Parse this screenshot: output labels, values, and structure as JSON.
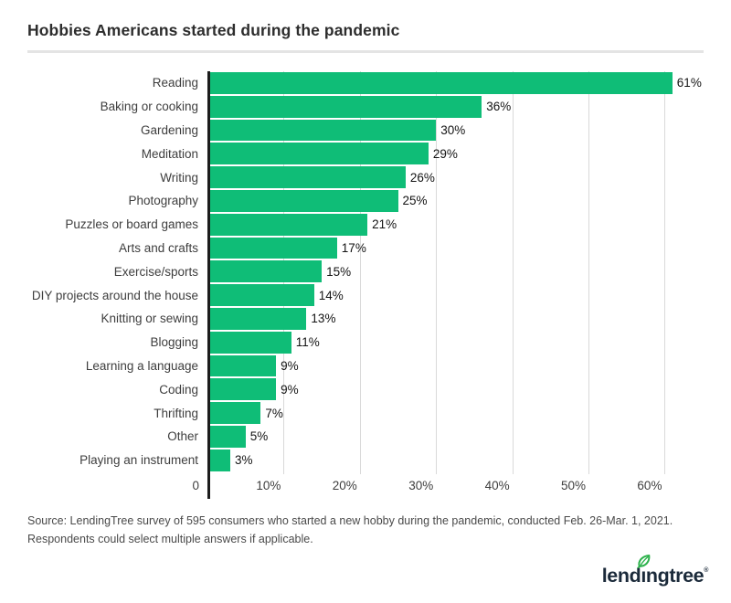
{
  "title": "Hobbies Americans started during the pandemic",
  "chart_data": {
    "type": "bar",
    "orientation": "horizontal",
    "title": "Hobbies Americans started during the pandemic",
    "xlabel": "",
    "ylabel": "",
    "grid": true,
    "xlim": [
      0,
      64.5
    ],
    "bar_color": "#0fbd77",
    "axis_color": "#1c1c1c",
    "gridline_color": "#d9d9d9",
    "categories": [
      "Reading",
      "Baking or cooking",
      "Gardening",
      "Meditation",
      "Writing",
      "Photography",
      "Puzzles or board games",
      "Arts and crafts",
      "Exercise/sports",
      "DIY projects around the house",
      "Knitting or sewing",
      "Blogging",
      "Learning a language",
      "Coding",
      "Thrifting",
      "Other",
      "Playing an instrument"
    ],
    "values": [
      61,
      36,
      30,
      29,
      26,
      25,
      21,
      17,
      15,
      14,
      13,
      11,
      9,
      9,
      7,
      5,
      3
    ],
    "value_labels": [
      "61%",
      "36%",
      "30%",
      "29%",
      "26%",
      "25%",
      "21%",
      "17%",
      "15%",
      "14%",
      "13%",
      "11%",
      "9%",
      "9%",
      "7%",
      "5%",
      "3%"
    ],
    "x_ticks": [
      {
        "value": 0,
        "label": "0"
      },
      {
        "value": 10,
        "label": "10%"
      },
      {
        "value": 20,
        "label": "20%"
      },
      {
        "value": 30,
        "label": "30%"
      },
      {
        "value": 40,
        "label": "40%"
      },
      {
        "value": 50,
        "label": "50%"
      },
      {
        "value": 60,
        "label": "60%"
      }
    ]
  },
  "source": {
    "line1": "Source: LendingTree survey of 595 consumers who started a new hobby during the pandemic, conducted Feb. 26-Mar. 1, 2021.",
    "line2": "Respondents could select multiple answers if applicable."
  },
  "logo": {
    "text_before_i": "lend",
    "i_char": "ı",
    "text_after_i": "ngtree",
    "registered_mark": "®",
    "leaf_color": "#2db24c",
    "text_color": "#1b2a3a"
  }
}
